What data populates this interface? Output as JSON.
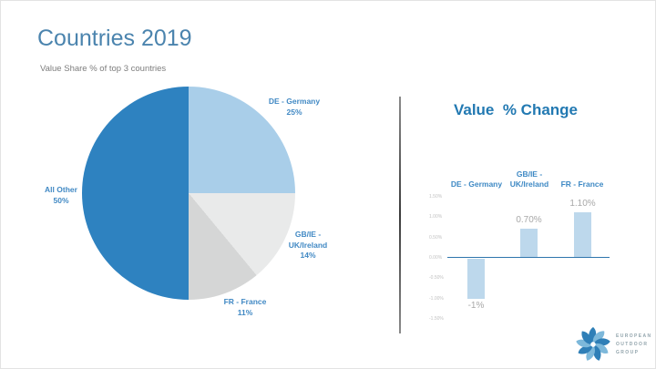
{
  "slide": {
    "title": "Countries 2019",
    "subtitle": "Value Share % of top 3 countries"
  },
  "pie_labels": {
    "de": {
      "l1": "DE - Germany",
      "l2": "25%"
    },
    "gbie": {
      "l1": "GB/IE -",
      "l2": "UK/Ireland",
      "l3": "14%"
    },
    "fr": {
      "l1": "FR - France",
      "l2": "11%"
    },
    "other": {
      "l1": "All Other",
      "l2": "50%"
    }
  },
  "bar_panel": {
    "title": "Value  % Change",
    "headers": {
      "de": "DE - Germany",
      "gbie_l1": "GB/IE -",
      "gbie_l2": "UK/Ireland",
      "fr": "FR - France"
    }
  },
  "logo": {
    "line1": "EUROPEAN",
    "line2": "OUTDOOR",
    "line3": "GROUP",
    "mark_colors": [
      "#2f7fb7",
      "#7db8da"
    ]
  },
  "colors": {
    "title_blue": "#4b84ae",
    "label_blue": "#4189c4",
    "bar_title_blue": "#2279b2",
    "axis_line": "#2e75ac",
    "bar_fill": "#bdd8ec",
    "value_label_gray": "#a8a8a8",
    "divider_gray": "#4f4f4f"
  },
  "chart_data": [
    {
      "type": "pie",
      "title": "Value Share % of top 3 countries",
      "labels": [
        "DE - Germany",
        "GB/IE - UK/Ireland",
        "FR - France",
        "All Other"
      ],
      "values": [
        25,
        14,
        11,
        50
      ],
      "unit": "%",
      "colors": [
        "#a9cee9",
        "#e9eaea",
        "#d5d6d6",
        "#2e82c0"
      ],
      "start_angle_deg": 0,
      "direction": "clockwise",
      "legend_position": "outside-labels"
    },
    {
      "type": "bar",
      "title": "Value % Change",
      "categories": [
        "DE - Germany",
        "GB/IE - UK/Ireland",
        "FR - France"
      ],
      "values": [
        -1.0,
        0.7,
        1.1
      ],
      "value_labels": [
        "-1%",
        "0.70%",
        "1.10%"
      ],
      "unit": "%",
      "bar_color": "#bdd8ec",
      "ylim": [
        -1.5,
        1.5
      ],
      "yticks": [
        {
          "value": 1.5,
          "label": "1.50%"
        },
        {
          "value": 1.0,
          "label": "1.00%"
        },
        {
          "value": 0.5,
          "label": "0.50%"
        },
        {
          "value": 0.0,
          "label": "0.00%"
        },
        {
          "value": -0.5,
          "label": "-0.50%"
        },
        {
          "value": -1.0,
          "label": "-1.00%"
        },
        {
          "value": -1.5,
          "label": "-1.50%"
        }
      ],
      "grid": false,
      "zero_axis_line": true
    }
  ]
}
